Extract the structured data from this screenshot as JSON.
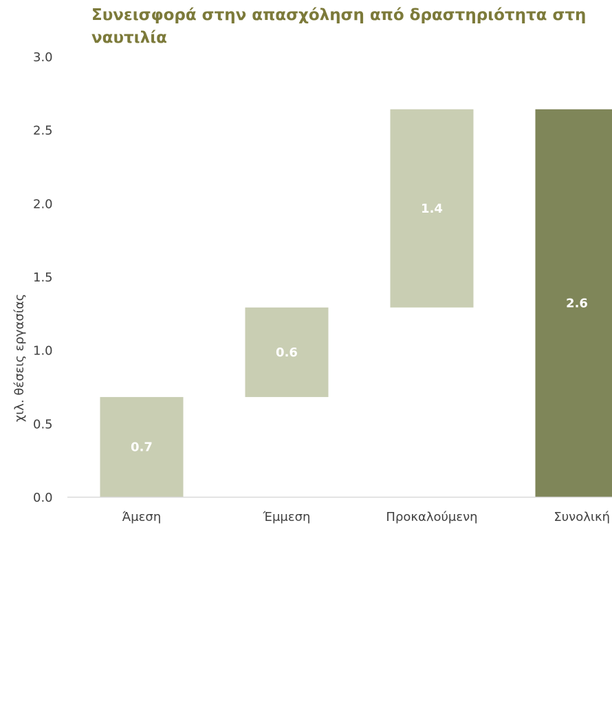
{
  "chart_data": {
    "type": "bar",
    "subtype": "waterfall",
    "title": "Συνεισφορά στην απασχόληση από δραστηριότητα στη ναυτιλία",
    "xlabel": "",
    "ylabel": "χιλ. θέσεις εργασίας",
    "ylim": [
      0,
      3.0
    ],
    "yticks": [
      "0.0",
      "0.5",
      "1.0",
      "1.5",
      "2.0",
      "2.5",
      "3.0"
    ],
    "categories": [
      "Άμεση",
      "Έμμεση",
      "Προκαλούμενη",
      "Συνολική"
    ],
    "bars": [
      {
        "category": "Άμεση",
        "base": 0.0,
        "top": 0.68,
        "label": "0.7",
        "kind": "increment"
      },
      {
        "category": "Έμμεση",
        "base": 0.68,
        "top": 1.29,
        "label": "0.6",
        "kind": "increment"
      },
      {
        "category": "Προκαλούμενη",
        "base": 1.29,
        "top": 2.64,
        "label": "1.4",
        "kind": "increment"
      },
      {
        "category": "Συνολική",
        "base": 0.0,
        "top": 2.64,
        "label": "2.6",
        "kind": "total"
      }
    ],
    "grid": false,
    "legend": "none",
    "colors": {
      "increment": "#c9ceb3",
      "total": "#7f8659",
      "title": "#7c7a3a",
      "axis_text": "#404040",
      "axis_line": "#d9d9d9",
      "data_label": "#ffffff"
    }
  }
}
